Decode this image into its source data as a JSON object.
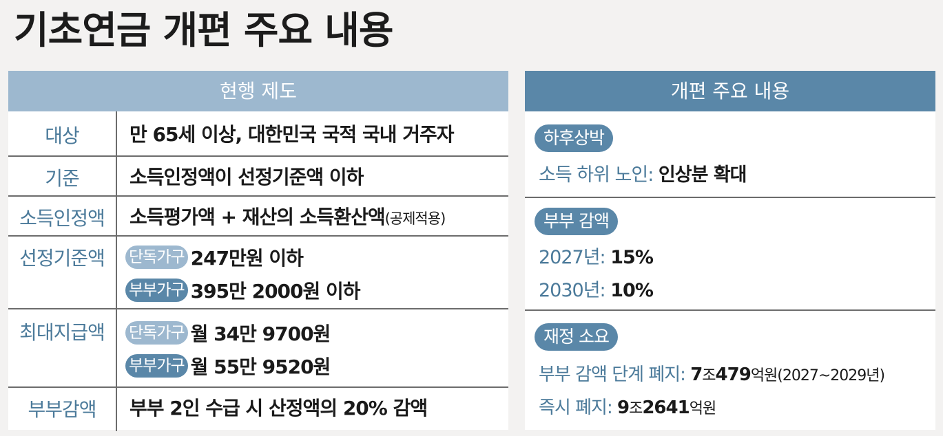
{
  "title": "기초연금 개편 주요 내용",
  "current": {
    "header": "현행 제도",
    "rows": [
      {
        "label": "대상",
        "value": "만 65세 이상, 대한민국 국적 국내 거주자"
      },
      {
        "label": "기준",
        "value": "소득인정액이 선정기준액 이하"
      },
      {
        "label": "소득인정액",
        "value": "소득평가액 + 재산의 소득환산액",
        "note": "(공제적용)"
      },
      {
        "label": "선정기준액",
        "single_tag": "단독가구",
        "single_value": "247만원 이하",
        "couple_tag": "부부가구",
        "couple_value": "395만 2000원 이하"
      },
      {
        "label": "최대지급액",
        "single_tag": "단독가구",
        "single_value": "월 34만 9700원",
        "couple_tag": "부부가구",
        "couple_value": "월 55만 9520원"
      },
      {
        "label": "부부감액",
        "value": "부부 2인 수급 시 산정액의 20% 감액"
      }
    ]
  },
  "reform": {
    "header": "개편 주요 내용",
    "s1": {
      "tag": "하후상박",
      "k": "소득 하위 노인:",
      "v": "인상분 확대"
    },
    "s2": {
      "tag": "부부 감액",
      "l1_k": "2027년:",
      "l1_v": "15%",
      "l2_k": "2030년:",
      "l2_v": "10%"
    },
    "s3": {
      "tag": "재정 소요",
      "l1_k": "부부 감액 단계 폐지:",
      "l1_a": "7",
      "l1_b": "조",
      "l1_c": "479",
      "l1_d": "억원(2027~2029년)",
      "l2_k": "즉시 폐지:",
      "l2_a": "9",
      "l2_b": "조",
      "l2_c": "2641",
      "l2_d": "억원"
    }
  },
  "colors": {
    "light_header": "#9db8cf",
    "dark_header": "#5a87a8",
    "label_text": "#4b7a9a"
  }
}
